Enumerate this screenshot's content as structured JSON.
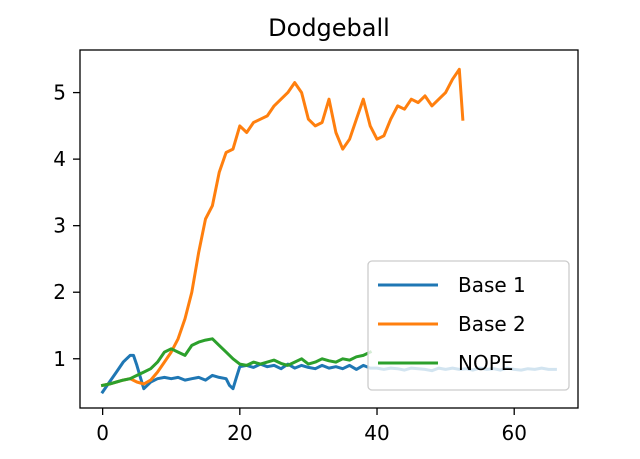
{
  "chart_data": {
    "type": "line",
    "title": "Dodgeball",
    "xlabel": "",
    "ylabel": "",
    "xlim": [
      -3.3,
      69.3
    ],
    "ylim": [
      0.26,
      5.64
    ],
    "xticks": [
      0,
      20,
      40,
      60
    ],
    "yticks": [
      1,
      2,
      3,
      4,
      5
    ],
    "grid": false,
    "legend_position": "lower right",
    "series": [
      {
        "name": "Base 1",
        "color": "#1f77b4",
        "x": [
          0,
          1,
          2,
          3,
          4,
          4.5,
          5,
          5.5,
          6,
          7,
          8,
          9,
          10,
          11,
          12,
          13,
          14,
          15,
          16,
          17,
          18,
          18.5,
          19,
          19.5,
          20,
          21,
          22,
          23,
          24,
          25,
          26,
          27,
          28,
          29,
          30,
          31,
          32,
          33,
          34,
          35,
          36,
          37,
          38,
          39,
          40,
          41,
          42,
          43,
          44,
          45,
          46,
          47,
          48,
          49,
          50,
          51,
          52,
          53,
          54,
          55,
          56,
          57,
          58,
          59,
          60,
          61,
          62,
          63,
          64,
          65,
          66
        ],
        "y": [
          0.5,
          0.65,
          0.8,
          0.95,
          1.05,
          1.05,
          0.9,
          0.72,
          0.55,
          0.65,
          0.7,
          0.72,
          0.7,
          0.72,
          0.68,
          0.7,
          0.72,
          0.68,
          0.75,
          0.72,
          0.7,
          0.6,
          0.55,
          0.72,
          0.88,
          0.9,
          0.87,
          0.92,
          0.88,
          0.9,
          0.85,
          0.92,
          0.86,
          0.9,
          0.87,
          0.85,
          0.9,
          0.86,
          0.88,
          0.85,
          0.9,
          0.84,
          0.9,
          0.86,
          0.86,
          0.84,
          0.86,
          0.85,
          0.83,
          0.86,
          0.85,
          0.84,
          0.82,
          0.86,
          0.84,
          0.86,
          0.84,
          0.85,
          0.83,
          0.86,
          0.84,
          0.85,
          0.83,
          0.86,
          0.84,
          0.83,
          0.85,
          0.84,
          0.86,
          0.84,
          0.84
        ]
      },
      {
        "name": "Base 2",
        "color": "#ff7f0e",
        "x": [
          0,
          1,
          2,
          3,
          4,
          5,
          6,
          7,
          8,
          9,
          10,
          11,
          12,
          13,
          14,
          15,
          16,
          17,
          18,
          19,
          20,
          21,
          22,
          23,
          24,
          25,
          26,
          27,
          28,
          29,
          30,
          31,
          32,
          33,
          34,
          35,
          36,
          37,
          38,
          39,
          40,
          41,
          42,
          43,
          44,
          45,
          46,
          47,
          48,
          49,
          50,
          51,
          52,
          52.5
        ],
        "y": [
          0.6,
          0.62,
          0.65,
          0.68,
          0.7,
          0.65,
          0.62,
          0.68,
          0.8,
          0.95,
          1.1,
          1.3,
          1.6,
          2.0,
          2.6,
          3.1,
          3.3,
          3.8,
          4.1,
          4.15,
          4.5,
          4.4,
          4.55,
          4.6,
          4.65,
          4.8,
          4.9,
          5.0,
          5.15,
          5.0,
          4.6,
          4.5,
          4.55,
          4.9,
          4.4,
          4.15,
          4.3,
          4.6,
          4.9,
          4.5,
          4.3,
          4.35,
          4.6,
          4.8,
          4.75,
          4.9,
          4.85,
          4.95,
          4.8,
          4.9,
          5.0,
          5.2,
          5.35,
          4.6
        ]
      },
      {
        "name": "NOPE",
        "color": "#2ca02c",
        "x": [
          0,
          1,
          2,
          3,
          4,
          5,
          6,
          7,
          8,
          9,
          10,
          11,
          12,
          13,
          14,
          15,
          16,
          17,
          18,
          19,
          20,
          21,
          22,
          23,
          24,
          25,
          26,
          27,
          28,
          29,
          30,
          31,
          32,
          33,
          34,
          35,
          36,
          37,
          38,
          39
        ],
        "y": [
          0.6,
          0.62,
          0.65,
          0.68,
          0.7,
          0.75,
          0.8,
          0.85,
          0.95,
          1.1,
          1.15,
          1.1,
          1.05,
          1.2,
          1.25,
          1.28,
          1.3,
          1.2,
          1.1,
          1.0,
          0.92,
          0.9,
          0.95,
          0.92,
          0.95,
          0.98,
          0.93,
          0.9,
          0.95,
          1.0,
          0.92,
          0.95,
          1.0,
          0.97,
          0.95,
          1.0,
          0.98,
          1.03,
          1.05,
          1.1
        ]
      }
    ]
  }
}
